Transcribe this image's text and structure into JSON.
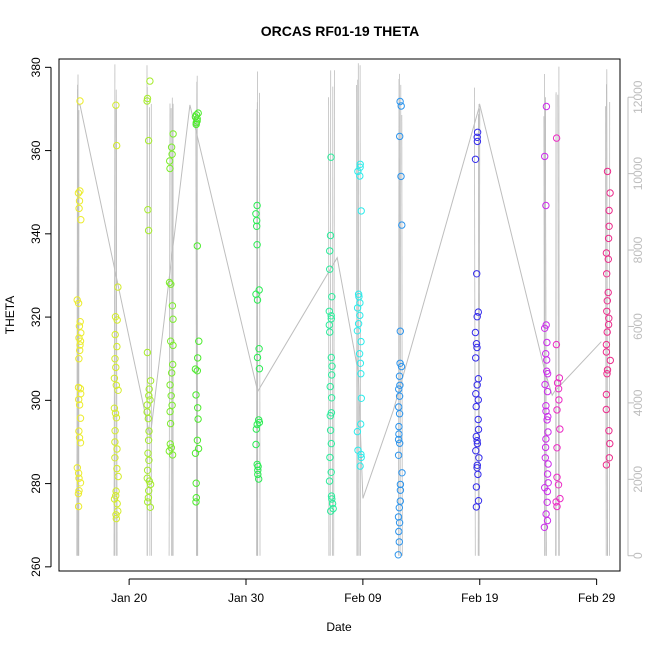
{
  "chart_data": {
    "type": "scatter",
    "title": "ORCAS RF01-19 THETA",
    "xlabel": "Date",
    "ylabel": "THETA",
    "xlim": [
      "2016-01-14",
      "2016-03-02"
    ],
    "ylim": [
      259,
      382
    ],
    "y2lim": [
      -400,
      13000
    ],
    "x_ticks": [
      {
        "date": "2016-01-20",
        "label": "Jan 20"
      },
      {
        "date": "2016-01-30",
        "label": "Jan 30"
      },
      {
        "date": "2016-02-09",
        "label": "Feb 09"
      },
      {
        "date": "2016-02-19",
        "label": "Feb 19"
      },
      {
        "date": "2016-02-29",
        "label": "Feb 29"
      }
    ],
    "y_ticks": [
      260,
      280,
      300,
      320,
      340,
      360,
      380
    ],
    "y2_ticks": [
      0,
      2000,
      4000,
      6000,
      8000,
      10000,
      12000
    ],
    "secondary_series": {
      "color": "#bebebe",
      "altitude_track": [
        {
          "date": "2016-01-15.6",
          "alt": 11800
        },
        {
          "date": "2016-01-15.8",
          "alt": 11800
        },
        {
          "date": "2016-01-21.8",
          "alt": 3100
        },
        {
          "date": "2016-01-25.2",
          "alt": 11800
        },
        {
          "date": "2016-01-31.0",
          "alt": 4300
        },
        {
          "date": "2016-02-06.8",
          "alt": 7800
        },
        {
          "date": "2016-02-08.6",
          "alt": 4800
        },
        {
          "date": "2016-02-09.0",
          "alt": 1500
        },
        {
          "date": "2016-02-11.6",
          "alt": 3800
        },
        {
          "date": "2016-02-19.0",
          "alt": 11800
        },
        {
          "date": "2016-02-24.6",
          "alt": 4800
        },
        {
          "date": "2016-02-25.2",
          "alt": 4200
        },
        {
          "date": "2016-02-25.4",
          "alt": 4300
        },
        {
          "date": "2016-02-29.4",
          "alt": 5600
        }
      ]
    },
    "flights": [
      {
        "color": "#ecec2c",
        "date": "2016-01-15.7",
        "theta": [
          274.5,
          277.6,
          278.3,
          280.2,
          281.3,
          282.5,
          283.8,
          289.8,
          291.0,
          292.6,
          295.7,
          298.9,
          300.2,
          301.6,
          302.8,
          303.1,
          310.0,
          312.0,
          313.3,
          314.2,
          315.0,
          316.2,
          317.8,
          318.9,
          323.3,
          324.1,
          343.4,
          346.1,
          347.9,
          349.8,
          350.3,
          371.9
        ]
      },
      {
        "color": "#d4ec2c",
        "date": "2016-01-18.9",
        "theta": [
          271.6,
          272.5,
          273.4,
          275.2,
          276.3,
          277.1,
          278.2,
          281.7,
          283.6,
          286.2,
          288.3,
          290.0,
          292.7,
          295.8,
          296.9,
          298.1,
          302.4,
          303.6,
          305.3,
          307.9,
          310.0,
          312.9,
          315.8,
          319.3,
          320.1,
          327.2,
          361.2,
          370.9
        ]
      },
      {
        "color": "#a6ec2c",
        "date": "2016-01-21.7",
        "theta": [
          274.3,
          275.6,
          276.6,
          278.3,
          279.8,
          280.6,
          281.3,
          283.2,
          285.6,
          287.3,
          290.4,
          292.6,
          295.6,
          297.2,
          298.9,
          300.1,
          301.1,
          302.7,
          304.7,
          311.5,
          340.8,
          345.8,
          362.4,
          371.9,
          372.5,
          376.7
        ]
      },
      {
        "color": "#7cec2c",
        "date": "2016-01-23.6",
        "theta": [
          286.9,
          287.8,
          288.6,
          289.5,
          294.4,
          297.3,
          298.8,
          301.1,
          303.7,
          306.6,
          308.6,
          313.2,
          314.2,
          319.5,
          322.7,
          327.9,
          328.3,
          355.7,
          357.5,
          359.1,
          360.8,
          364.0
        ]
      },
      {
        "color": "#4cec2c",
        "date": "2016-01-25.8",
        "theta": [
          275.6,
          276.6,
          280.1,
          287.3,
          288.4,
          290.4,
          295.5,
          298.2,
          301.3,
          307.1,
          307.5,
          310.2,
          314.2,
          337.1,
          366.3,
          366.7,
          367.1,
          367.6,
          368.1,
          368.6,
          369.0
        ]
      },
      {
        "color": "#2cec54",
        "date": "2016-01-31.0",
        "theta": [
          281.1,
          282.2,
          283.2,
          284.1,
          284.6,
          289.4,
          293.1,
          294.2,
          294.7,
          295.3,
          307.6,
          310.3,
          312.4,
          324.1,
          325.5,
          326.5,
          337.4,
          341.8,
          343.2,
          344.8,
          346.8
        ]
      },
      {
        "color": "#2cec9c",
        "date": "2016-02-06.3",
        "theta": [
          273.4,
          274.0,
          275.2,
          276.3,
          277.0,
          280.6,
          282.7,
          286.3,
          289.6,
          292.8,
          296.3,
          297.0,
          300.6,
          303.3,
          306.1,
          308.2,
          310.3,
          316.4,
          318.1,
          319.6,
          320.3,
          321.4,
          324.9,
          331.5,
          335.9,
          339.6,
          358.4
        ]
      },
      {
        "color": "#2cecec",
        "date": "2016-02-08.7",
        "theta": [
          284.2,
          286.3,
          287.0,
          288.0,
          292.5,
          294.3,
          300.5,
          306.4,
          308.9,
          311.2,
          314.1,
          316.7,
          318.4,
          320.4,
          322.2,
          323.4,
          324.9,
          325.5,
          345.5,
          353.9,
          355.0,
          356.0,
          356.7
        ]
      },
      {
        "color": "#2c94ec",
        "date": "2016-02-12.2",
        "theta": [
          262.9,
          266.0,
          268.5,
          270.6,
          272.0,
          274.2,
          275.8,
          278.4,
          279.8,
          282.6,
          286.8,
          289.7,
          290.6,
          291.9,
          293.7,
          296.8,
          298.4,
          301.0,
          302.7,
          303.6,
          305.8,
          308.1,
          308.9,
          316.6,
          342.1,
          353.8,
          363.4,
          370.7,
          371.8
        ]
      },
      {
        "color": "#342cec",
        "date": "2016-02-18.8",
        "theta": [
          274.4,
          275.9,
          279.2,
          282.2,
          283.8,
          284.4,
          286.2,
          287.9,
          289.6,
          290.3,
          291.3,
          293.0,
          295.4,
          298.5,
          300.1,
          301.6,
          303.7,
          305.2,
          310.2,
          312.7,
          313.6,
          316.3,
          320.1,
          321.2,
          330.4,
          357.9,
          362.2,
          363.2,
          364.4
        ]
      },
      {
        "color": "#cc2cec",
        "date": "2016-02-24.7",
        "theta": [
          269.5,
          271.1,
          272.7,
          275.5,
          278.1,
          279.0,
          280.2,
          282.3,
          284.7,
          286.2,
          288.7,
          290.7,
          292.4,
          295.3,
          296.1,
          297.4,
          298.7,
          302.1,
          303.8,
          306.4,
          307.0,
          309.7,
          311.2,
          313.9,
          317.3,
          318.1,
          346.8,
          358.6,
          370.6
        ]
      },
      {
        "color": "#ec2cc4",
        "date": "2016-02-25.7",
        "theta": [
          274.5,
          275.6,
          276.4,
          279.7,
          281.5,
          288.6,
          293.1,
          297.7,
          300.1,
          302.8,
          304.2,
          305.4,
          313.4,
          363.0
        ]
      },
      {
        "color": "#ec2c8c",
        "date": "2016-03-01.0",
        "theta": [
          284.5,
          286.2,
          289.6,
          292.7,
          297.8,
          301.4,
          306.4,
          307.3,
          309.6,
          311.6,
          313.4,
          316.4,
          318.2,
          319.7,
          321.4,
          323.9,
          325.9,
          330.4,
          333.9,
          335.4,
          338.9,
          341.8,
          345.6,
          349.8,
          355.0
        ]
      }
    ]
  }
}
